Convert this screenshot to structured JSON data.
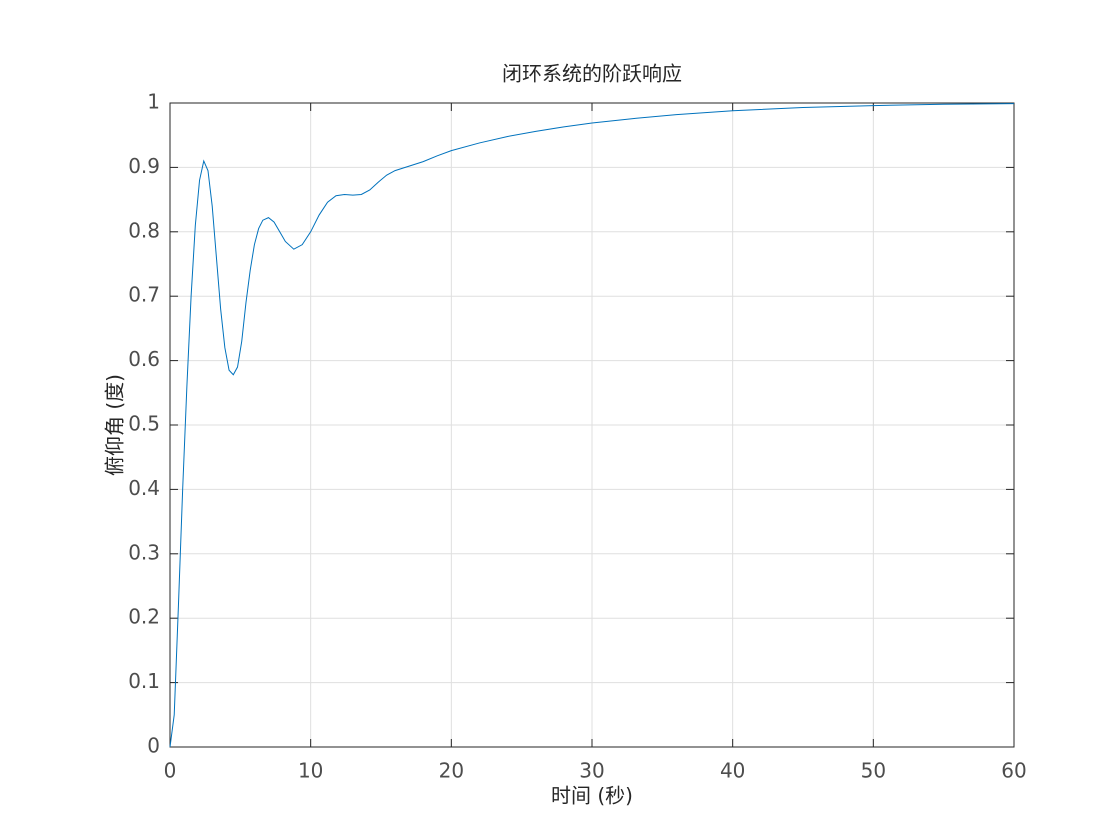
{
  "chart_data": {
    "type": "line",
    "title": "闭环系统的阶跃响应",
    "x_label": "时间 (秒)",
    "y_label": "俯仰角 (度)",
    "x": [
      0,
      0.3,
      0.6,
      0.9,
      1.2,
      1.5,
      1.8,
      2.1,
      2.4,
      2.7,
      3.0,
      3.3,
      3.6,
      3.9,
      4.2,
      4.5,
      4.8,
      5.1,
      5.4,
      5.7,
      6.0,
      6.3,
      6.6,
      7.0,
      7.4,
      7.8,
      8.2,
      8.8,
      9.4,
      10,
      10.6,
      11.2,
      11.8,
      12.4,
      13,
      13.6,
      14.2,
      14.8,
      15.4,
      16,
      17,
      18,
      19,
      20,
      22,
      24,
      26,
      28,
      30,
      33,
      36,
      40,
      45,
      50,
      55,
      60
    ],
    "series": [
      {
        "color": "#0072bd",
        "values": [
          0,
          0.05,
          0.22,
          0.4,
          0.56,
          0.7,
          0.81,
          0.88,
          0.91,
          0.895,
          0.84,
          0.76,
          0.68,
          0.62,
          0.585,
          0.578,
          0.59,
          0.63,
          0.69,
          0.74,
          0.78,
          0.805,
          0.818,
          0.822,
          0.815,
          0.8,
          0.785,
          0.773,
          0.78,
          0.8,
          0.826,
          0.846,
          0.856,
          0.858,
          0.857,
          0.858,
          0.865,
          0.877,
          0.888,
          0.895,
          0.902,
          0.909,
          0.918,
          0.926,
          0.938,
          0.948,
          0.956,
          0.963,
          0.969,
          0.976,
          0.982,
          0.988,
          0.993,
          0.996,
          0.998,
          0.999
        ]
      }
    ],
    "reference_line": 1,
    "xlim": [
      0,
      60
    ],
    "xticks": [
      0,
      10,
      20,
      30,
      40,
      50,
      60
    ],
    "ylim": [
      0,
      1
    ],
    "yticks": [
      0,
      0.1,
      0.2,
      0.3,
      0.4,
      0.5,
      0.6,
      0.7,
      0.8,
      0.9,
      1
    ],
    "grid": true
  }
}
